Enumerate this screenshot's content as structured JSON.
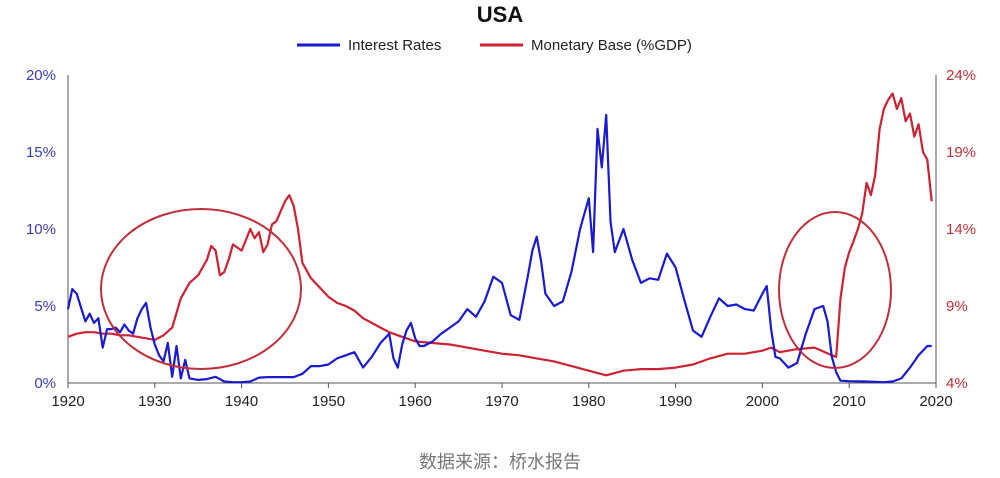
{
  "chart_data": {
    "type": "line",
    "title": "USA",
    "source_note": "数据来源：桥水报告",
    "x_range": [
      1920,
      2020
    ],
    "x_ticks": [
      "1920",
      "1930",
      "1940",
      "1950",
      "1960",
      "1970",
      "1980",
      "1990",
      "2000",
      "2010",
      "2020"
    ],
    "y_left": {
      "range": [
        0,
        20
      ],
      "ticks": [
        "0%",
        "5%",
        "10%",
        "15%",
        "20%"
      ],
      "color": "#2f2fc8"
    },
    "y_right": {
      "range": [
        4,
        24
      ],
      "ticks": [
        "4%",
        "9%",
        "14%",
        "19%",
        "24%"
      ],
      "color": "#c0303a"
    },
    "legend_position": "top-center",
    "grid": false,
    "series": [
      {
        "name": "Interest Rates",
        "axis": "left",
        "color": "#1a1ad0",
        "x": [
          1920,
          1920.5,
          1921,
          1921.5,
          1922,
          1922.5,
          1923,
          1923.5,
          1924,
          1924.5,
          1925,
          1925.5,
          1926,
          1926.5,
          1927,
          1927.5,
          1928,
          1928.5,
          1929,
          1929.5,
          1930,
          1930.5,
          1931,
          1931.5,
          1932,
          1932.5,
          1933,
          1933.5,
          1934,
          1935,
          1936,
          1937,
          1938,
          1939,
          1940,
          1941,
          1942,
          1943,
          1944,
          1945,
          1946,
          1947,
          1948,
          1949,
          1950,
          1951,
          1952,
          1953,
          1954,
          1955,
          1956,
          1957,
          1957.5,
          1958,
          1958.5,
          1959,
          1959.5,
          1960,
          1960.5,
          1961,
          1962,
          1963,
          1964,
          1965,
          1966,
          1967,
          1968,
          1969,
          1970,
          1971,
          1972,
          1973,
          1973.5,
          1974,
          1974.5,
          1975,
          1976,
          1977,
          1978,
          1979,
          1980,
          1980.5,
          1981,
          1981.5,
          1982,
          1982.5,
          1983,
          1984,
          1985,
          1986,
          1987,
          1988,
          1989,
          1990,
          1991,
          1992,
          1993,
          1994,
          1995,
          1996,
          1997,
          1998,
          1999,
          2000,
          2000.5,
          2001,
          2001.5,
          2002,
          2003,
          2004,
          2005,
          2006,
          2007,
          2007.5,
          2008,
          2008.5,
          2009,
          2010,
          2012,
          2014,
          2015,
          2016,
          2017,
          2018,
          2019,
          2019.5
        ],
        "y": [
          4.8,
          6.1,
          5.8,
          4.9,
          4.0,
          4.5,
          3.9,
          4.2,
          2.3,
          3.5,
          3.5,
          3.6,
          3.3,
          3.8,
          3.4,
          3.2,
          4.2,
          4.8,
          5.2,
          3.6,
          2.5,
          1.8,
          1.4,
          2.6,
          0.4,
          2.4,
          0.3,
          1.5,
          0.3,
          0.2,
          0.25,
          0.4,
          0.1,
          0.05,
          0.05,
          0.1,
          0.35,
          0.38,
          0.38,
          0.38,
          0.38,
          0.6,
          1.1,
          1.1,
          1.2,
          1.6,
          1.8,
          2.0,
          1.0,
          1.7,
          2.6,
          3.2,
          1.6,
          1.0,
          2.5,
          3.4,
          3.9,
          2.9,
          2.4,
          2.4,
          2.7,
          3.2,
          3.6,
          4.0,
          4.8,
          4.3,
          5.3,
          6.9,
          6.5,
          4.4,
          4.1,
          7.0,
          8.6,
          9.5,
          7.9,
          5.8,
          5.0,
          5.3,
          7.2,
          10.0,
          12.0,
          8.5,
          16.5,
          14.0,
          17.4,
          10.5,
          8.5,
          10.0,
          8.0,
          6.5,
          6.8,
          6.7,
          8.4,
          7.5,
          5.4,
          3.4,
          3.0,
          4.3,
          5.5,
          5.0,
          5.1,
          4.8,
          4.7,
          5.8,
          6.3,
          3.5,
          1.7,
          1.6,
          1.0,
          1.3,
          3.2,
          4.8,
          5.0,
          4.0,
          1.7,
          0.7,
          0.15,
          0.12,
          0.1,
          0.05,
          0.1,
          0.3,
          1.0,
          1.8,
          2.4,
          2.4
        ]
      },
      {
        "name": "Monetary Base (%GDP)",
        "axis": "right",
        "color": "#cc2233",
        "x": [
          1920,
          1921,
          1922,
          1923,
          1924,
          1925,
          1926,
          1927,
          1928,
          1929,
          1930,
          1931,
          1932,
          1933,
          1934,
          1935,
          1936,
          1936.5,
          1937,
          1937.5,
          1938,
          1938.5,
          1939,
          1940,
          1941,
          1941.5,
          1942,
          1942.5,
          1943,
          1943.5,
          1944,
          1945,
          1945.5,
          1946,
          1946.5,
          1947,
          1948,
          1949,
          1950,
          1951,
          1952,
          1953,
          1954,
          1955,
          1956,
          1957,
          1958,
          1959,
          1960,
          1962,
          1964,
          1966,
          1968,
          1970,
          1972,
          1974,
          1976,
          1978,
          1980,
          1982,
          1984,
          1986,
          1988,
          1990,
          1992,
          1994,
          1996,
          1998,
          2000,
          2001,
          2002,
          2004,
          2006,
          2008,
          2008.5,
          2009,
          2009.5,
          2010,
          2010.5,
          2011,
          2011.5,
          2012,
          2012.5,
          2013,
          2013.5,
          2014,
          2014.5,
          2015,
          2015.5,
          2016,
          2016.5,
          2017,
          2017.5,
          2018,
          2018.5,
          2019,
          2019.5
        ],
        "y": [
          7.0,
          7.2,
          7.3,
          7.3,
          7.2,
          7.2,
          7.1,
          7.1,
          7.0,
          6.9,
          6.8,
          7.1,
          7.6,
          9.5,
          10.5,
          11.0,
          12.0,
          12.9,
          12.6,
          11.0,
          11.2,
          12.0,
          13.0,
          12.6,
          14.0,
          13.4,
          13.8,
          12.5,
          13.0,
          14.3,
          14.5,
          15.8,
          16.2,
          15.5,
          14.0,
          11.8,
          10.8,
          10.2,
          9.6,
          9.2,
          9.0,
          8.7,
          8.2,
          7.9,
          7.6,
          7.3,
          7.1,
          6.9,
          6.7,
          6.6,
          6.5,
          6.3,
          6.1,
          5.9,
          5.8,
          5.6,
          5.4,
          5.1,
          4.8,
          4.5,
          4.8,
          4.9,
          4.9,
          5.0,
          5.2,
          5.6,
          5.9,
          5.9,
          6.1,
          6.3,
          6.0,
          6.2,
          6.3,
          5.8,
          5.7,
          9.5,
          11.5,
          12.5,
          13.2,
          14.0,
          15.0,
          17.0,
          16.2,
          17.5,
          20.5,
          21.8,
          22.4,
          22.8,
          21.8,
          22.5,
          21.0,
          21.5,
          20.0,
          20.8,
          19.0,
          18.5,
          15.8
        ]
      }
    ]
  }
}
